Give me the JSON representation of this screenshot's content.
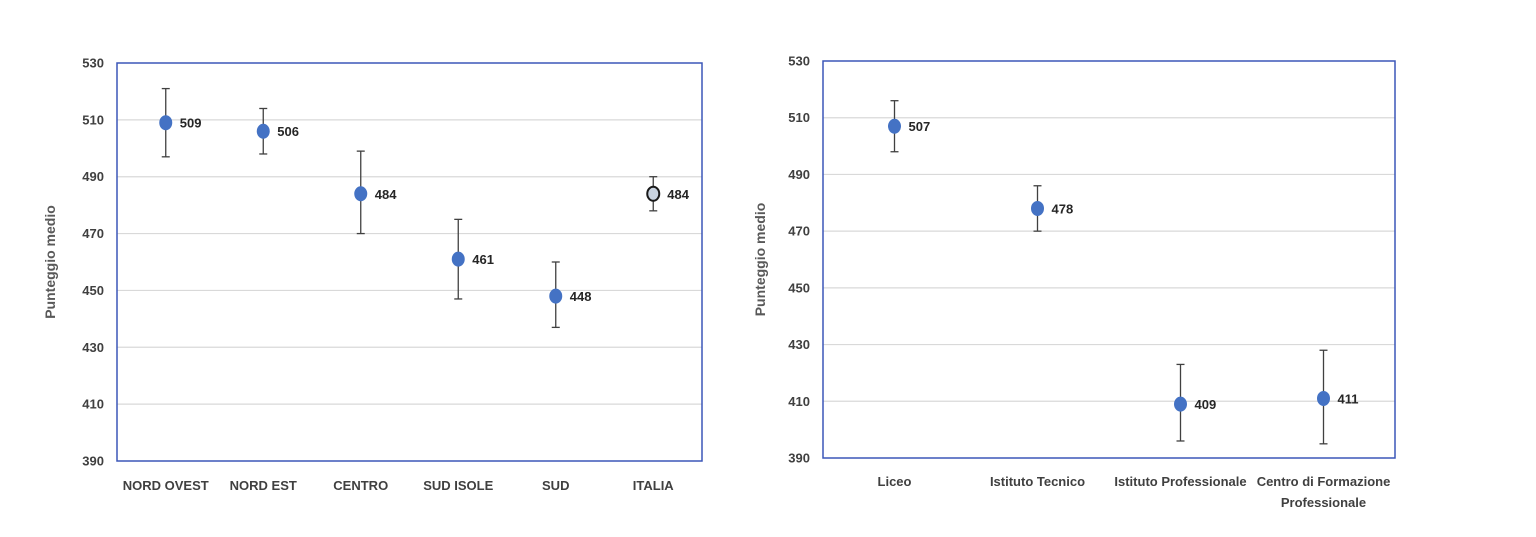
{
  "chart_data": [
    {
      "type": "scatter",
      "ylabel": "Punteggio medio",
      "ylim": [
        390,
        530
      ],
      "yticks": [
        390,
        410,
        430,
        450,
        470,
        490,
        510,
        530
      ],
      "grid": true,
      "categories": [
        "NORD OVEST",
        "NORD EST",
        "CENTRO",
        "SUD ISOLE",
        "SUD",
        "ITALIA"
      ],
      "values": [
        509,
        506,
        484,
        461,
        448,
        484
      ],
      "labels": [
        "509",
        "506",
        "484",
        "461",
        "448",
        "484"
      ],
      "error_low": [
        497,
        498,
        470,
        447,
        437,
        478
      ],
      "error_high": [
        521,
        514,
        499,
        475,
        460,
        490
      ],
      "highlight": [
        false,
        false,
        false,
        false,
        false,
        true
      ]
    },
    {
      "type": "scatter",
      "ylabel": "Punteggio medio",
      "ylim": [
        390,
        530
      ],
      "yticks": [
        390,
        410,
        430,
        450,
        470,
        490,
        510,
        530
      ],
      "grid": true,
      "categories": [
        "Liceo",
        "Istituto Tecnico",
        "Istituto Professionale",
        "Centro di Formazione Professionale"
      ],
      "values": [
        507,
        478,
        409,
        411
      ],
      "labels": [
        "507",
        "478",
        "409",
        "411"
      ],
      "error_low": [
        498,
        470,
        396,
        395
      ],
      "error_high": [
        516,
        486,
        423,
        428
      ],
      "highlight": [
        false,
        false,
        false,
        false
      ]
    }
  ],
  "colors": {
    "marker": "#4472C4",
    "highlight_marker": "#C9D3E0",
    "frame": "#3B57B8",
    "grid": "#D9D9D9",
    "errorbar": "#404040"
  }
}
